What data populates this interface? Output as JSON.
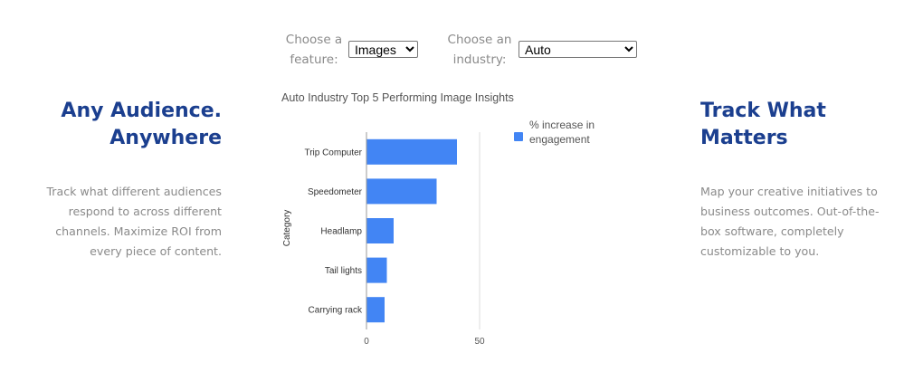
{
  "controls": {
    "feature_label": "Choose a feature:",
    "feature_value": "Images",
    "industry_label": "Choose an industry:",
    "industry_value": "Auto"
  },
  "left": {
    "title_line1": "Any Audience.",
    "title_line2": "Anywhere",
    "body": [
      "Track what different audiences",
      "respond to across different",
      "channels. Maximize ROI from",
      "every piece of content."
    ]
  },
  "right": {
    "title_line1": "Track What",
    "title_line2": "Matters",
    "body": [
      "Map your creative initiatives to",
      "business outcomes. Out-of-the-",
      "box software, completely",
      "customizable to you."
    ]
  },
  "colors": {
    "accent": "#1b3f8f",
    "bar": "#4285f4"
  },
  "chart_data": {
    "type": "bar",
    "orientation": "horizontal",
    "title": "Auto Industry Top 5 Performing Image Insights",
    "ylabel": "Category",
    "xlabel": "",
    "categories": [
      "Trip Computer",
      "Speedometer",
      "Headlamp",
      "Tail lights",
      "Carrying rack"
    ],
    "series": [
      {
        "name": "% increase in engagement",
        "values": [
          40,
          31,
          12,
          9,
          8
        ]
      }
    ],
    "xlim": [
      0,
      50
    ],
    "xticks": [
      0,
      50
    ],
    "grid": true,
    "legend": "right",
    "legend_lines": [
      "% increase in",
      "engagement"
    ]
  }
}
